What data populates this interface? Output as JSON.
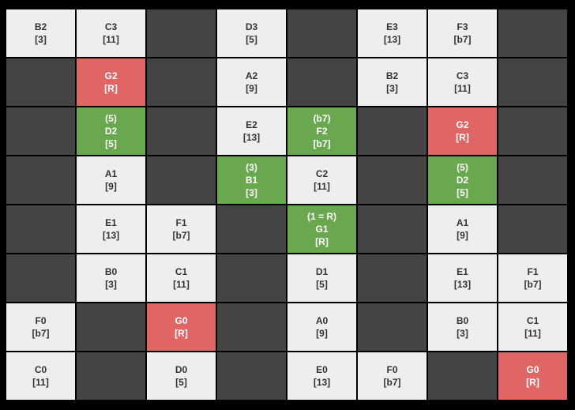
{
  "grid": {
    "rows": [
      [
        {
          "fill": "#eeeeee",
          "lines": [
            "B2",
            "[3]"
          ]
        },
        {
          "fill": "#eeeeee",
          "lines": [
            "C3",
            "[11]"
          ]
        },
        {
          "fill": "#444444"
        },
        {
          "fill": "#eeeeee",
          "lines": [
            "D3",
            "[5]"
          ]
        },
        {
          "fill": "#444444"
        },
        {
          "fill": "#eeeeee",
          "lines": [
            "E3",
            "[13]"
          ]
        },
        {
          "fill": "#eeeeee",
          "lines": [
            "F3",
            "[b7]"
          ]
        },
        {
          "fill": "#444444"
        }
      ],
      [
        {
          "fill": "#444444"
        },
        {
          "fill": "#e06666",
          "lines": [
            "G2",
            "[R]"
          ]
        },
        {
          "fill": "#444444"
        },
        {
          "fill": "#eeeeee",
          "lines": [
            "A2",
            "[9]"
          ]
        },
        {
          "fill": "#444444"
        },
        {
          "fill": "#eeeeee",
          "lines": [
            "B2",
            "[3]"
          ]
        },
        {
          "fill": "#eeeeee",
          "lines": [
            "C3",
            "[11]"
          ]
        },
        {
          "fill": "#444444"
        }
      ],
      [
        {
          "fill": "#444444"
        },
        {
          "fill": "#6aa84f",
          "lines": [
            "(5)",
            "D2",
            "[5]"
          ]
        },
        {
          "fill": "#444444"
        },
        {
          "fill": "#eeeeee",
          "lines": [
            "E2",
            "[13]"
          ]
        },
        {
          "fill": "#6aa84f",
          "lines": [
            "(b7)",
            "F2",
            "[b7]"
          ]
        },
        {
          "fill": "#444444"
        },
        {
          "fill": "#e06666",
          "lines": [
            "G2",
            "[R]"
          ]
        },
        {
          "fill": "#444444"
        }
      ],
      [
        {
          "fill": "#444444"
        },
        {
          "fill": "#eeeeee",
          "lines": [
            "A1",
            "[9]"
          ]
        },
        {
          "fill": "#444444"
        },
        {
          "fill": "#6aa84f",
          "lines": [
            "(3)",
            "B1",
            "[3]"
          ]
        },
        {
          "fill": "#eeeeee",
          "lines": [
            "C2",
            "[11]"
          ]
        },
        {
          "fill": "#444444"
        },
        {
          "fill": "#6aa84f",
          "lines": [
            "(5)",
            "D2",
            "[5]"
          ]
        },
        {
          "fill": "#444444"
        }
      ],
      [
        {
          "fill": "#444444"
        },
        {
          "fill": "#eeeeee",
          "lines": [
            "E1",
            "[13]"
          ]
        },
        {
          "fill": "#eeeeee",
          "lines": [
            "F1",
            "[b7]"
          ]
        },
        {
          "fill": "#444444"
        },
        {
          "fill": "#6aa84f",
          "lines": [
            "(1 = R)",
            "G1",
            "[R]"
          ]
        },
        {
          "fill": "#444444"
        },
        {
          "fill": "#eeeeee",
          "lines": [
            "A1",
            "[9]"
          ]
        },
        {
          "fill": "#444444"
        }
      ],
      [
        {
          "fill": "#444444"
        },
        {
          "fill": "#eeeeee",
          "lines": [
            "B0",
            "[3]"
          ]
        },
        {
          "fill": "#eeeeee",
          "lines": [
            "C1",
            "[11]"
          ]
        },
        {
          "fill": "#444444"
        },
        {
          "fill": "#eeeeee",
          "lines": [
            "D1",
            "[5]"
          ]
        },
        {
          "fill": "#444444"
        },
        {
          "fill": "#eeeeee",
          "lines": [
            "E1",
            "[13]"
          ]
        },
        {
          "fill": "#eeeeee",
          "lines": [
            "F1",
            "[b7]"
          ]
        }
      ],
      [
        {
          "fill": "#eeeeee",
          "lines": [
            "F0",
            "[b7]"
          ]
        },
        {
          "fill": "#444444"
        },
        {
          "fill": "#e06666",
          "lines": [
            "G0",
            "[R]"
          ]
        },
        {
          "fill": "#444444"
        },
        {
          "fill": "#eeeeee",
          "lines": [
            "A0",
            "[9]"
          ]
        },
        {
          "fill": "#444444"
        },
        {
          "fill": "#eeeeee",
          "lines": [
            "B0",
            "[3]"
          ]
        },
        {
          "fill": "#eeeeee",
          "lines": [
            "C1",
            "[11]"
          ]
        }
      ],
      [
        {
          "fill": "#eeeeee",
          "lines": [
            "C0",
            "[11]"
          ]
        },
        {
          "fill": "#444444"
        },
        {
          "fill": "#eeeeee",
          "lines": [
            "D0",
            "[5]"
          ]
        },
        {
          "fill": "#444444"
        },
        {
          "fill": "#eeeeee",
          "lines": [
            "E0",
            "[13]"
          ]
        },
        {
          "fill": "#eeeeee",
          "lines": [
            "F0",
            "[b7]"
          ]
        },
        {
          "fill": "#444444"
        },
        {
          "fill": "#e06666",
          "lines": [
            "G0",
            "[R]"
          ]
        }
      ]
    ]
  }
}
